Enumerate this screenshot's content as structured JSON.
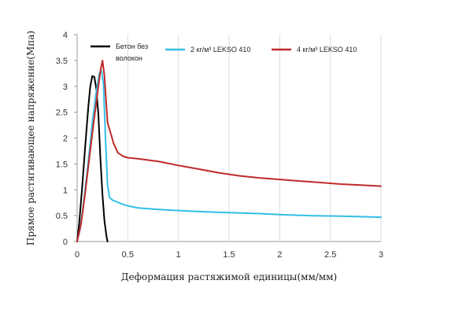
{
  "chart_data": {
    "type": "line",
    "title": "",
    "xlabel": "Деформация растяжимой единицы(мм/мм)",
    "ylabel": "Прямое растягивающее напряжение(Мпа)",
    "xlim": [
      0,
      3
    ],
    "ylim": [
      0,
      4
    ],
    "x_ticks": [
      "0",
      "0.5",
      "1",
      "1.5",
      "2",
      "2.5",
      "3"
    ],
    "y_ticks": [
      "0",
      "0.5",
      "1",
      "1.5",
      "2",
      "2.5",
      "3",
      "3.5",
      "4"
    ],
    "grid": "vertical",
    "legend_position": "top",
    "series": [
      {
        "name": "Бетон без волокон",
        "legend_lines": [
          "Бетон без",
          "волокон"
        ],
        "color": "#000000",
        "points": [
          [
            0,
            0
          ],
          [
            0.02,
            0.35
          ],
          [
            0.05,
            1.05
          ],
          [
            0.08,
            1.85
          ],
          [
            0.11,
            2.6
          ],
          [
            0.13,
            3.0
          ],
          [
            0.15,
            3.2
          ],
          [
            0.17,
            3.18
          ],
          [
            0.19,
            2.95
          ],
          [
            0.21,
            2.45
          ],
          [
            0.23,
            1.6
          ],
          [
            0.25,
            0.9
          ],
          [
            0.27,
            0.4
          ],
          [
            0.29,
            0.1
          ],
          [
            0.3,
            0
          ]
        ]
      },
      {
        "name": "2 кг/м³ LEKSO 410",
        "color": "#33BFE6",
        "points": [
          [
            0,
            0
          ],
          [
            0.03,
            0.25
          ],
          [
            0.07,
            0.85
          ],
          [
            0.11,
            1.55
          ],
          [
            0.15,
            2.3
          ],
          [
            0.19,
            2.9
          ],
          [
            0.22,
            3.25
          ],
          [
            0.24,
            3.3
          ],
          [
            0.26,
            3.05
          ],
          [
            0.28,
            2.0
          ],
          [
            0.3,
            1.1
          ],
          [
            0.32,
            0.85
          ],
          [
            0.35,
            0.8
          ],
          [
            0.4,
            0.76
          ],
          [
            0.45,
            0.72
          ],
          [
            0.5,
            0.69
          ],
          [
            0.6,
            0.65
          ],
          [
            0.8,
            0.62
          ],
          [
            1.0,
            0.6
          ],
          [
            1.2,
            0.58
          ],
          [
            1.5,
            0.56
          ],
          [
            1.8,
            0.54
          ],
          [
            2.0,
            0.52
          ],
          [
            2.3,
            0.5
          ],
          [
            2.6,
            0.49
          ],
          [
            2.8,
            0.48
          ],
          [
            3.0,
            0.47
          ]
        ]
      },
      {
        "name": "4 кг/м³ LEKSO 410",
        "color": "#C02A2A",
        "points": [
          [
            0,
            0
          ],
          [
            0.04,
            0.35
          ],
          [
            0.08,
            0.95
          ],
          [
            0.12,
            1.6
          ],
          [
            0.16,
            2.25
          ],
          [
            0.2,
            2.85
          ],
          [
            0.23,
            3.3
          ],
          [
            0.25,
            3.5
          ],
          [
            0.27,
            3.2
          ],
          [
            0.3,
            2.3
          ],
          [
            0.33,
            2.1
          ],
          [
            0.36,
            1.9
          ],
          [
            0.4,
            1.72
          ],
          [
            0.45,
            1.65
          ],
          [
            0.5,
            1.62
          ],
          [
            0.6,
            1.6
          ],
          [
            0.8,
            1.55
          ],
          [
            1.0,
            1.47
          ],
          [
            1.2,
            1.4
          ],
          [
            1.4,
            1.33
          ],
          [
            1.6,
            1.27
          ],
          [
            1.8,
            1.23
          ],
          [
            2.0,
            1.2
          ],
          [
            2.2,
            1.17
          ],
          [
            2.4,
            1.14
          ],
          [
            2.6,
            1.11
          ],
          [
            2.8,
            1.09
          ],
          [
            3.0,
            1.07
          ]
        ]
      }
    ]
  }
}
